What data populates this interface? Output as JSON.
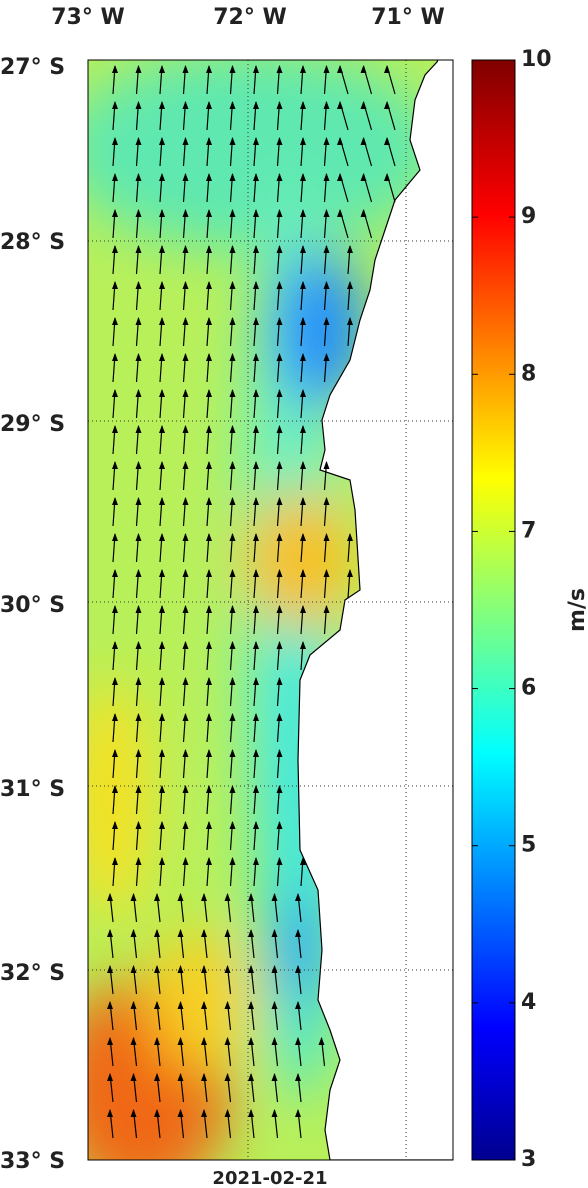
{
  "map": {
    "lon_labels": [
      "73° W",
      "72° W",
      "71° W"
    ],
    "lat_labels": [
      "27° S",
      "28° S",
      "29° S",
      "30° S",
      "31° S",
      "32° S",
      "33° S"
    ],
    "date": "2021-02-21",
    "colorbar": {
      "label": "m/s",
      "lim": [
        3,
        10
      ],
      "ticks": [
        3,
        4,
        5,
        6,
        7,
        8,
        9,
        10
      ]
    }
  }
}
